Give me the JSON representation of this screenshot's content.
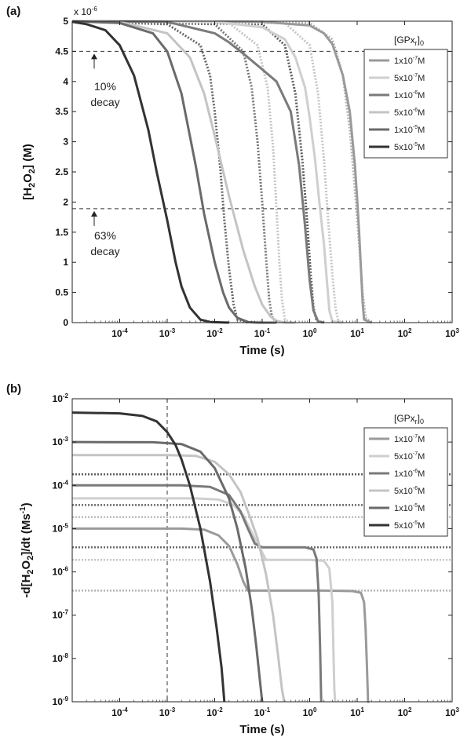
{
  "chart_data": [
    {
      "panel_label": "(a)",
      "type": "line",
      "xscale": "log",
      "yscale": "linear",
      "xlabel": "Time (s)",
      "ylabel": "[H2O2] (M)",
      "y_multiplier_label": "x 10-6",
      "xlim": [
        1e-05,
        1000
      ],
      "ylim": [
        0,
        5
      ],
      "x_ticks": [
        0.0001,
        0.001,
        0.01,
        0.1,
        1,
        10,
        100,
        1000
      ],
      "x_tick_labels": [
        "10-4",
        "10-3",
        "10-2",
        "10-1",
        "100",
        "101",
        "102",
        "103"
      ],
      "y_ticks": [
        0,
        0.5,
        1,
        1.5,
        2,
        2.5,
        3,
        3.5,
        4,
        4.5,
        5
      ],
      "y_tick_labels": [
        "0",
        "0.5",
        "1",
        "1.5",
        "2",
        "2.5",
        "3",
        "3.5",
        "4",
        "4.5",
        "5"
      ],
      "legend_title": "[GPxr]0",
      "legend_position": "right",
      "reference_lines": [
        {
          "y": 4.5,
          "style": "dashed"
        },
        {
          "y": 1.89,
          "style": "dashed"
        }
      ],
      "annotations": [
        {
          "text_lines": [
            "10%",
            "decay"
          ]
        },
        {
          "text_lines": [
            "63%",
            "decay"
          ]
        }
      ],
      "series": [
        {
          "name": "1x10-7M",
          "color": "#9a9a9a",
          "x": [
            1e-05,
            0.1,
            1,
            2,
            3,
            5,
            7,
            9,
            10,
            11,
            12,
            13,
            14,
            20
          ],
          "y": [
            5,
            4.99,
            4.93,
            4.8,
            4.62,
            4.1,
            3.5,
            2.6,
            2.05,
            1.5,
            0.9,
            0.35,
            0.05,
            0
          ]
        },
        {
          "name": "5x10-7M",
          "color": "#cfcfcf",
          "x": [
            1e-05,
            0.01,
            0.1,
            0.3,
            0.5,
            0.8,
            1,
            1.3,
            1.6,
            2,
            2.3,
            2.6,
            3,
            5
          ],
          "y": [
            5,
            4.99,
            4.9,
            4.7,
            4.4,
            3.9,
            3.4,
            2.7,
            2,
            1.3,
            0.7,
            0.2,
            0.02,
            0
          ]
        },
        {
          "name": "1x10-6M",
          "color": "#7a7a7a",
          "x": [
            1e-05,
            0.001,
            0.01,
            0.02,
            0.05,
            0.1,
            0.2,
            0.4,
            0.6,
            0.8,
            1,
            1.2,
            1.5,
            2
          ],
          "y": [
            5,
            4.99,
            4.8,
            4.65,
            4.4,
            4.2,
            4.0,
            3.5,
            2.6,
            1.6,
            0.7,
            0.2,
            0.02,
            0
          ]
        },
        {
          "name": "5x10-6M",
          "color": "#c4c4c4",
          "x": [
            1e-05,
            0.0001,
            0.001,
            0.003,
            0.006,
            0.01,
            0.02,
            0.04,
            0.07,
            0.1,
            0.15,
            0.2,
            0.3,
            0.5
          ],
          "y": [
            5,
            4.99,
            4.8,
            4.4,
            3.8,
            3.1,
            2.1,
            1.2,
            0.6,
            0.3,
            0.1,
            0.03,
            0,
            0
          ]
        },
        {
          "name": "1x10-5M",
          "color": "#6a6a6a",
          "x": [
            1e-05,
            0.0001,
            0.0005,
            0.001,
            0.002,
            0.004,
            0.006,
            0.01,
            0.015,
            0.02,
            0.03,
            0.05,
            0.08,
            0.2
          ],
          "y": [
            5,
            4.97,
            4.8,
            4.5,
            3.8,
            2.6,
            1.8,
            1.0,
            0.5,
            0.25,
            0.08,
            0.01,
            0,
            0
          ]
        },
        {
          "name": "5x10-5M",
          "color": "#333333",
          "x": [
            1e-05,
            2e-05,
            5e-05,
            0.0001,
            0.0002,
            0.0004,
            0.0006,
            0.001,
            0.0015,
            0.002,
            0.003,
            0.005,
            0.008,
            0.02
          ],
          "y": [
            4.99,
            4.95,
            4.85,
            4.6,
            4.1,
            3.2,
            2.5,
            1.7,
            1.0,
            0.6,
            0.25,
            0.05,
            0.01,
            0
          ]
        }
      ],
      "dotted_series": [
        {
          "color": "#686868",
          "x": [
            1e-05,
            0.001,
            0.005,
            0.008,
            0.01,
            0.013,
            0.016,
            0.02,
            0.025,
            0.03,
            0.05
          ],
          "y": [
            5,
            4.95,
            4.6,
            4.1,
            3.5,
            2.6,
            1.7,
            0.9,
            0.3,
            0.05,
            0
          ]
        },
        {
          "color": "#787878",
          "x": [
            1e-05,
            0.01,
            0.04,
            0.06,
            0.08,
            0.1,
            0.12,
            0.14,
            0.16,
            0.2
          ],
          "y": [
            5,
            4.95,
            4.5,
            3.9,
            3.0,
            2.0,
            1.1,
            0.4,
            0.1,
            0
          ]
        },
        {
          "color": "#c6c6c6",
          "x": [
            1e-05,
            0.02,
            0.08,
            0.13,
            0.17,
            0.2,
            0.23,
            0.26,
            0.3,
            0.4
          ],
          "y": [
            5,
            4.97,
            4.6,
            3.9,
            2.9,
            1.9,
            1.0,
            0.4,
            0.05,
            0
          ]
        },
        {
          "color": "#5c5c5c",
          "x": [
            1e-05,
            0.1,
            0.3,
            0.5,
            0.7,
            0.9,
            1.05,
            1.2,
            1.4,
            2
          ],
          "y": [
            5,
            4.95,
            4.6,
            3.8,
            2.7,
            1.6,
            0.8,
            0.25,
            0.03,
            0
          ]
        },
        {
          "color": "#c6c6c6",
          "x": [
            1e-05,
            0.3,
            1,
            1.5,
            2,
            2.5,
            3,
            3.5,
            4,
            5
          ],
          "y": [
            5,
            4.97,
            4.6,
            3.8,
            2.7,
            1.6,
            0.8,
            0.25,
            0.03,
            0
          ]
        },
        {
          "color": "#b4b4b4",
          "x": [
            1e-05,
            1,
            3,
            5,
            7,
            9,
            11,
            13,
            15,
            20
          ],
          "y": [
            5,
            4.97,
            4.7,
            4.1,
            3.2,
            2.2,
            1.3,
            0.5,
            0.08,
            0
          ]
        }
      ]
    },
    {
      "panel_label": "(b)",
      "type": "line",
      "xscale": "log",
      "yscale": "log",
      "xlabel": "Time (s)",
      "ylabel": "-d[H2O2]/dt (Ms-1)",
      "xlim": [
        1e-05,
        1000
      ],
      "ylim": [
        1e-09,
        0.01
      ],
      "x_ticks": [
        0.0001,
        0.001,
        0.01,
        0.1,
        1,
        10,
        100,
        1000
      ],
      "x_tick_labels": [
        "10-4",
        "10-3",
        "10-2",
        "10-1",
        "100",
        "101",
        "102",
        "103"
      ],
      "y_ticks": [
        1e-09,
        1e-08,
        1e-07,
        1e-06,
        1e-05,
        0.0001,
        0.001,
        0.01
      ],
      "y_tick_labels": [
        "10-9",
        "10-8",
        "10-7",
        "10-6",
        "10-5",
        "10-4",
        "10-3",
        "10-2"
      ],
      "legend_title": "[GPxr]0",
      "legend_position": "right",
      "reference_lines": [
        {
          "x": 0.001,
          "style": "dashed"
        }
      ],
      "dotted_hlines": [
        {
          "y": 0.00018,
          "color": "#5c5c5c"
        },
        {
          "y": 3.5e-05,
          "color": "#6a6a6a"
        },
        {
          "y": 1.85e-05,
          "color": "#bdbdbd"
        },
        {
          "y": 3.7e-06,
          "color": "#6a6a6a"
        },
        {
          "y": 1.9e-06,
          "color": "#c6c6c6"
        },
        {
          "y": 3.7e-07,
          "color": "#b4b4b4"
        }
      ],
      "series": [
        {
          "name": "1x10-7M",
          "color": "#9a9a9a",
          "x": [
            1e-05,
            0.002,
            0.006,
            0.012,
            0.02,
            0.03,
            0.04,
            0.05,
            2,
            8,
            12,
            14,
            15,
            16,
            17,
            18
          ],
          "y": [
            1e-05,
            1e-05,
            9.5e-06,
            7e-06,
            4e-06,
            1.5e-06,
            6e-07,
            3.7e-07,
            3.7e-07,
            3.6e-07,
            3.3e-07,
            2e-07,
            5e-08,
            8e-09,
            1e-09,
            1e-09
          ]
        },
        {
          "name": "5x10-7M",
          "color": "#cfcfcf",
          "x": [
            1e-05,
            0.004,
            0.012,
            0.025,
            0.04,
            0.055,
            0.08,
            0.12,
            1,
            2,
            2.6,
            3,
            3.15,
            3.3,
            3.45
          ],
          "y": [
            5e-05,
            5e-05,
            4.7e-05,
            3.5e-05,
            2e-05,
            1e-05,
            4.5e-06,
            1.9e-06,
            1.9e-06,
            1.8e-06,
            1.2e-06,
            2e-07,
            2e-08,
            2e-09,
            1e-09
          ]
        },
        {
          "name": "1x10-6M",
          "color": "#7a7a7a",
          "x": [
            1e-05,
            0.002,
            0.008,
            0.02,
            0.035,
            0.05,
            0.07,
            0.1,
            0.8,
            1.2,
            1.4,
            1.55,
            1.65,
            1.75
          ],
          "y": [
            0.0001,
            0.0001,
            9.2e-05,
            6e-05,
            2.5e-05,
            1e-05,
            4.5e-06,
            3.7e-06,
            3.7e-06,
            3.3e-06,
            2e-06,
            3e-07,
            2e-08,
            1e-09
          ]
        },
        {
          "name": "5x10-6M",
          "color": "#c4c4c4",
          "x": [
            1e-05,
            0.001,
            0.004,
            0.01,
            0.02,
            0.035,
            0.05,
            0.08,
            0.12,
            0.17,
            0.22,
            0.26,
            0.29
          ],
          "y": [
            0.0005,
            0.0005,
            0.00048,
            0.00035,
            0.00018,
            7e-05,
            2.5e-05,
            6e-06,
            9e-07,
            1e-07,
            1e-08,
            2e-09,
            1e-09
          ]
        },
        {
          "name": "1x10-5M",
          "color": "#6a6a6a",
          "x": [
            1e-05,
            0.0005,
            0.002,
            0.005,
            0.01,
            0.02,
            0.03,
            0.045,
            0.06,
            0.075,
            0.09,
            0.1
          ],
          "y": [
            0.001,
            0.00099,
            0.0009,
            0.0006,
            0.00025,
            5e-05,
            1e-05,
            1.2e-06,
            1.5e-07,
            2e-08,
            3e-09,
            1e-09
          ]
        },
        {
          "name": "5x10-5M",
          "color": "#333333",
          "x": [
            1e-05,
            0.0001,
            0.0003,
            0.0006,
            0.001,
            0.0015,
            0.002,
            0.003,
            0.005,
            0.008,
            0.011,
            0.014,
            0.016
          ],
          "y": [
            0.0048,
            0.0046,
            0.004,
            0.003,
            0.0017,
            0.00085,
            0.0004,
            0.0001,
            1e-05,
            6e-07,
            5e-08,
            6e-09,
            1e-09
          ]
        }
      ]
    }
  ]
}
